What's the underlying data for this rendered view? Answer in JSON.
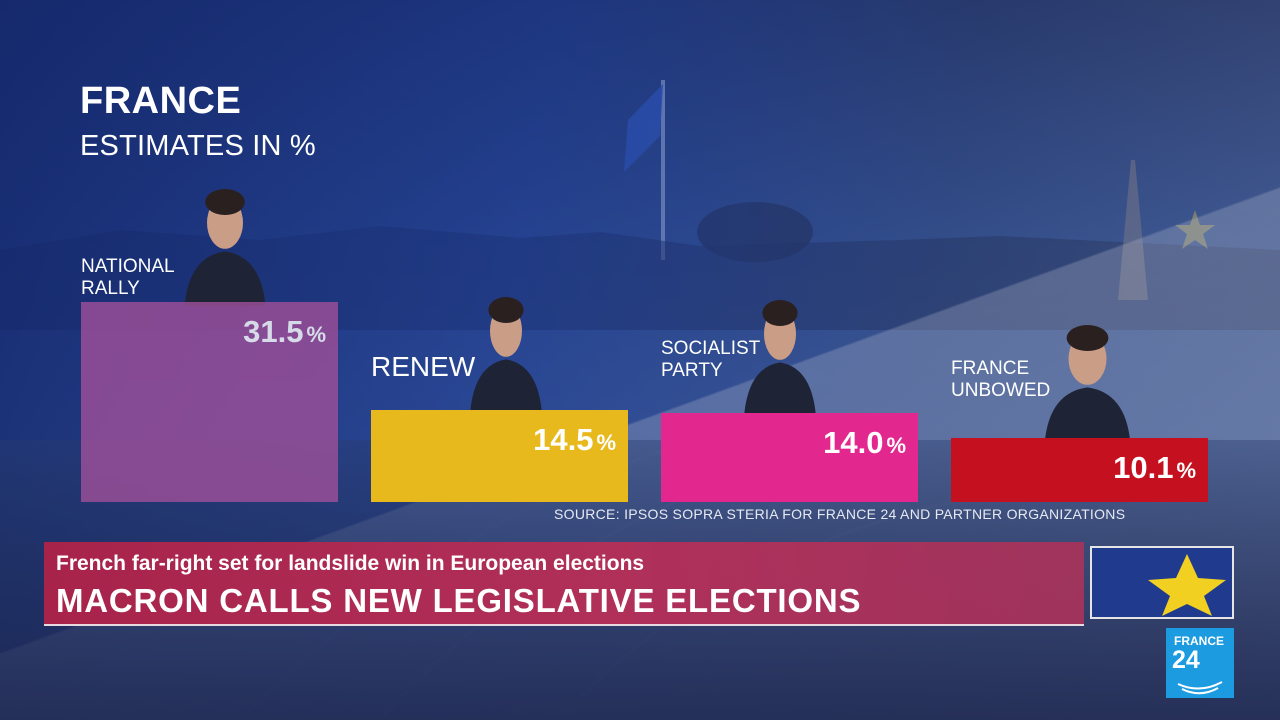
{
  "chart_data": {
    "type": "bar",
    "title": "FRANCE",
    "subtitle": "ESTIMATES IN %",
    "categories": [
      "NATIONAL RALLY",
      "RENEW",
      "SOCIALIST PARTY",
      "FRANCE UNBOWED"
    ],
    "values": [
      31.5,
      14.5,
      14.0,
      10.1
    ],
    "value_labels": [
      "31.5",
      "14.5",
      "14.0",
      "10.1"
    ],
    "unit": "%",
    "colors": [
      "#9c4f98",
      "#e8b91c",
      "#e2288f",
      "#c5101f"
    ],
    "source": "SOURCE: IPSOS SOPRA STERIA FOR FRANCE 24 AND PARTNER ORGANIZATIONS"
  },
  "banner": {
    "kicker": "French far-right set for landslide win in European elections",
    "headline": "MACRON CALLS NEW LEGISLATIVE ELECTIONS"
  },
  "logo": {
    "line1": "FRANCE",
    "line2": "24",
    "color": "#1d9be0"
  },
  "icons": [
    "eu-flag-icon",
    "france24-logo-icon",
    "portrait-icon"
  ]
}
